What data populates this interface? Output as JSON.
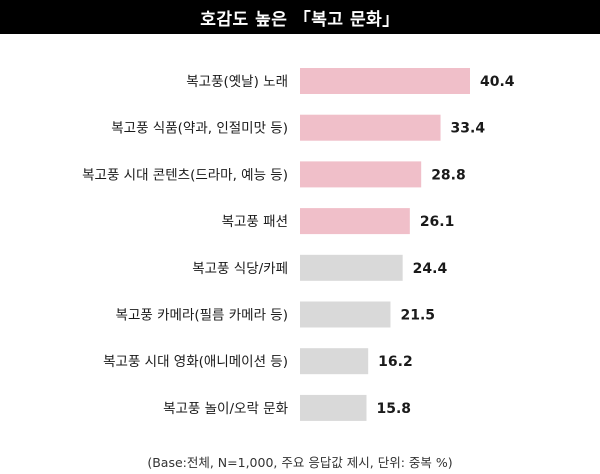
{
  "header": {
    "title": "호감도 높은 「복고 문화」"
  },
  "footnote": "(Base:전체, N=1,000, 주요 응답값 제시, 단위: 중복 %)",
  "colors": {
    "highlight": "#f0bfc9",
    "neutral": "#d9d9d9",
    "title_bg": "#000000",
    "title_fg": "#ffffff"
  },
  "chart_data": {
    "type": "bar",
    "orientation": "horizontal",
    "title": "호감도 높은 「복고 문화」",
    "xlabel": "",
    "ylabel": "",
    "unit": "%",
    "xlim": [
      0,
      45
    ],
    "grid": false,
    "categories": [
      "복고풍(옛날) 노래",
      "복고풍 식품(약과, 인절미맛 등)",
      "복고풍 시대 콘텐츠(드라마, 예능 등)",
      "복고풍 패션",
      "복고풍 식당/카페",
      "복고풍 카메라(필름 카메라 등)",
      "복고풍 시대 영화(애니메이션 등)",
      "복고풍 놀이/오락 문화"
    ],
    "values": [
      40.4,
      33.4,
      28.8,
      26.1,
      24.4,
      21.5,
      16.2,
      15.8
    ],
    "value_labels": [
      "40.4",
      "33.4",
      "28.8",
      "26.1",
      "24.4",
      "21.5",
      "16.2",
      "15.8"
    ],
    "highlighted": [
      true,
      true,
      true,
      true,
      false,
      false,
      false,
      false
    ]
  }
}
